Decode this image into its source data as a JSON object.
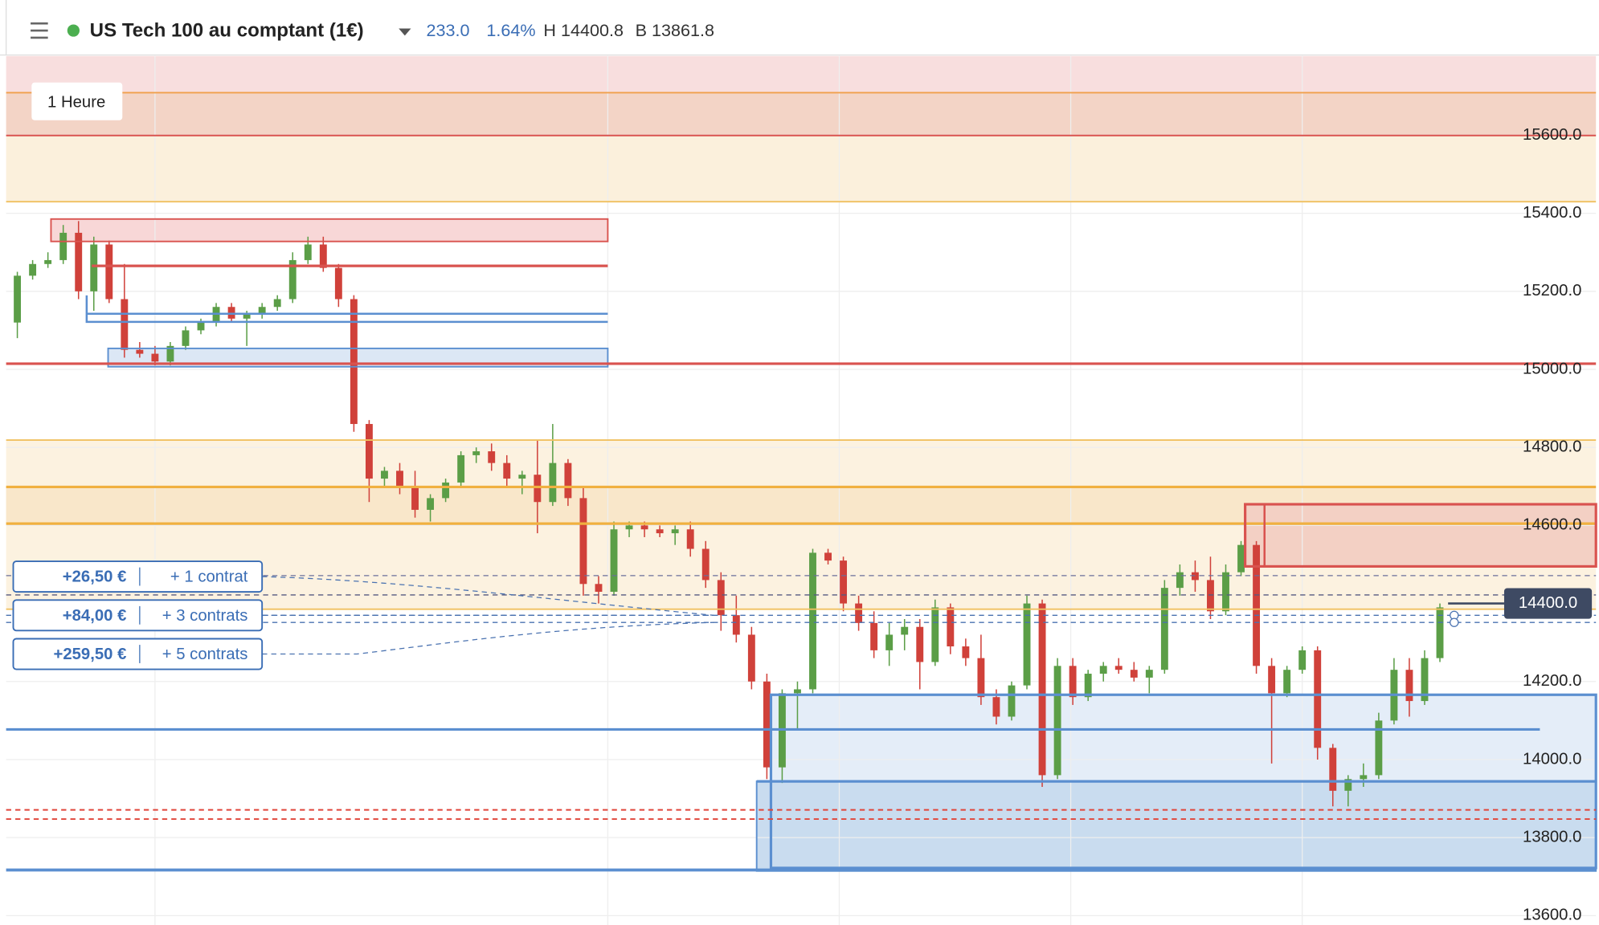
{
  "header": {
    "instrument": "US Tech 100 au comptant (1€)",
    "change": "233.0",
    "change_pct": "1.64%",
    "high": "H 14400.8",
    "low": "B 13861.8"
  },
  "timeframe": "1 Heure",
  "positions": [
    {
      "pnl": "+26,50 €",
      "size": "+ 1 contrat"
    },
    {
      "pnl": "+84,00 €",
      "size": "+ 3 contrats"
    },
    {
      "pnl": "+259,50 €",
      "size": "+ 5 contrats"
    }
  ],
  "chart_data": {
    "type": "candlestick",
    "up_color": "#5b9e47",
    "down_color": "#d0413a",
    "grid": true,
    "ylim": [
      13576,
      15803
    ],
    "yticks": [
      {
        "value": 15600,
        "label": "15600.0"
      },
      {
        "value": 15400,
        "label": "15400.0"
      },
      {
        "value": 15200,
        "label": "15200.0"
      },
      {
        "value": 15000,
        "label": "15000.0"
      },
      {
        "value": 14800,
        "label": "14800.0"
      },
      {
        "value": 14600,
        "label": "14600.0"
      },
      {
        "value": 14200,
        "label": "14200.0"
      },
      {
        "value": 14000,
        "label": "14000.0"
      },
      {
        "value": 13800,
        "label": "13800.0"
      },
      {
        "value": 13600,
        "label": "13600.0"
      }
    ],
    "last_price": {
      "value": 14400,
      "label": "14400.0"
    },
    "ohlc": [
      [
        15120,
        15250,
        15080,
        15240
      ],
      [
        15240,
        15280,
        15230,
        15270
      ],
      [
        15270,
        15300,
        15260,
        15280
      ],
      [
        15280,
        15370,
        15270,
        15350
      ],
      [
        15350,
        15380,
        15180,
        15200
      ],
      [
        15200,
        15340,
        15150,
        15320
      ],
      [
        15320,
        15330,
        15170,
        15180
      ],
      [
        15180,
        15270,
        15030,
        15050
      ],
      [
        15050,
        15070,
        15030,
        15040
      ],
      [
        15040,
        15060,
        15010,
        15020
      ],
      [
        15020,
        15070,
        15010,
        15060
      ],
      [
        15060,
        15110,
        15050,
        15100
      ],
      [
        15100,
        15130,
        15090,
        15120
      ],
      [
        15120,
        15170,
        15110,
        15160
      ],
      [
        15160,
        15170,
        15120,
        15130
      ],
      [
        15130,
        15150,
        15060,
        15140
      ],
      [
        15140,
        15170,
        15130,
        15160
      ],
      [
        15160,
        15190,
        15150,
        15180
      ],
      [
        15180,
        15300,
        15170,
        15280
      ],
      [
        15280,
        15340,
        15270,
        15320
      ],
      [
        15320,
        15340,
        15250,
        15260
      ],
      [
        15260,
        15270,
        15160,
        15180
      ],
      [
        15180,
        15190,
        14840,
        14860
      ],
      [
        14860,
        14870,
        14660,
        14720
      ],
      [
        14720,
        14750,
        14700,
        14740
      ],
      [
        14740,
        14760,
        14680,
        14700
      ],
      [
        14700,
        14740,
        14620,
        14640
      ],
      [
        14640,
        14680,
        14610,
        14670
      ],
      [
        14670,
        14720,
        14660,
        14710
      ],
      [
        14710,
        14790,
        14700,
        14780
      ],
      [
        14780,
        14800,
        14760,
        14790
      ],
      [
        14790,
        14810,
        14740,
        14760
      ],
      [
        14760,
        14780,
        14700,
        14720
      ],
      [
        14720,
        14740,
        14680,
        14730
      ],
      [
        14730,
        14820,
        14580,
        14660
      ],
      [
        14660,
        14860,
        14650,
        14760
      ],
      [
        14760,
        14770,
        14650,
        14670
      ],
      [
        14670,
        14700,
        14420,
        14450
      ],
      [
        14450,
        14470,
        14400,
        14430
      ],
      [
        14430,
        14610,
        14420,
        14590
      ],
      [
        14590,
        14610,
        14570,
        14600
      ],
      [
        14600,
        14610,
        14570,
        14590
      ],
      [
        14590,
        14600,
        14570,
        14580
      ],
      [
        14580,
        14600,
        14550,
        14590
      ],
      [
        14590,
        14610,
        14520,
        14540
      ],
      [
        14540,
        14560,
        14440,
        14460
      ],
      [
        14460,
        14480,
        14330,
        14370
      ],
      [
        14370,
        14420,
        14300,
        14320
      ],
      [
        14320,
        14340,
        14180,
        14200
      ],
      [
        14200,
        14220,
        13950,
        13980
      ],
      [
        13980,
        14180,
        13940,
        14170
      ],
      [
        14170,
        14200,
        14080,
        14180
      ],
      [
        14180,
        14540,
        14170,
        14530
      ],
      [
        14530,
        14540,
        14500,
        14510
      ],
      [
        14510,
        14520,
        14380,
        14400
      ],
      [
        14400,
        14420,
        14330,
        14350
      ],
      [
        14350,
        14380,
        14260,
        14280
      ],
      [
        14280,
        14350,
        14240,
        14320
      ],
      [
        14320,
        14360,
        14280,
        14340
      ],
      [
        14340,
        14360,
        14180,
        14250
      ],
      [
        14250,
        14410,
        14240,
        14390
      ],
      [
        14390,
        14400,
        14270,
        14290
      ],
      [
        14290,
        14310,
        14240,
        14260
      ],
      [
        14260,
        14320,
        14140,
        14160
      ],
      [
        14160,
        14180,
        14090,
        14110
      ],
      [
        14110,
        14200,
        14100,
        14190
      ],
      [
        14190,
        14420,
        14180,
        14400
      ],
      [
        14400,
        14410,
        13930,
        13960
      ],
      [
        13960,
        14260,
        13950,
        14240
      ],
      [
        14240,
        14260,
        14140,
        14160
      ],
      [
        14160,
        14230,
        14150,
        14220
      ],
      [
        14220,
        14250,
        14200,
        14240
      ],
      [
        14240,
        14260,
        14220,
        14230
      ],
      [
        14230,
        14250,
        14200,
        14210
      ],
      [
        14210,
        14240,
        14170,
        14230
      ],
      [
        14230,
        14460,
        14220,
        14440
      ],
      [
        14440,
        14500,
        14420,
        14480
      ],
      [
        14480,
        14510,
        14430,
        14460
      ],
      [
        14460,
        14520,
        14360,
        14380
      ],
      [
        14380,
        14500,
        14370,
        14480
      ],
      [
        14480,
        14560,
        14470,
        14550
      ],
      [
        14550,
        14560,
        14220,
        14240
      ],
      [
        14240,
        14260,
        13990,
        14170
      ],
      [
        14170,
        14240,
        14160,
        14230
      ],
      [
        14230,
        14290,
        14220,
        14280
      ],
      [
        14280,
        14290,
        14000,
        14030
      ],
      [
        14030,
        14040,
        13880,
        13920
      ],
      [
        13920,
        13960,
        13880,
        13950
      ],
      [
        13950,
        13990,
        13930,
        13960
      ],
      [
        13960,
        14120,
        13950,
        14100
      ],
      [
        14100,
        14260,
        14090,
        14230
      ],
      [
        14230,
        14260,
        14110,
        14150
      ],
      [
        14150,
        14280,
        14140,
        14260
      ],
      [
        14260,
        14400,
        14250,
        14390
      ]
    ]
  }
}
